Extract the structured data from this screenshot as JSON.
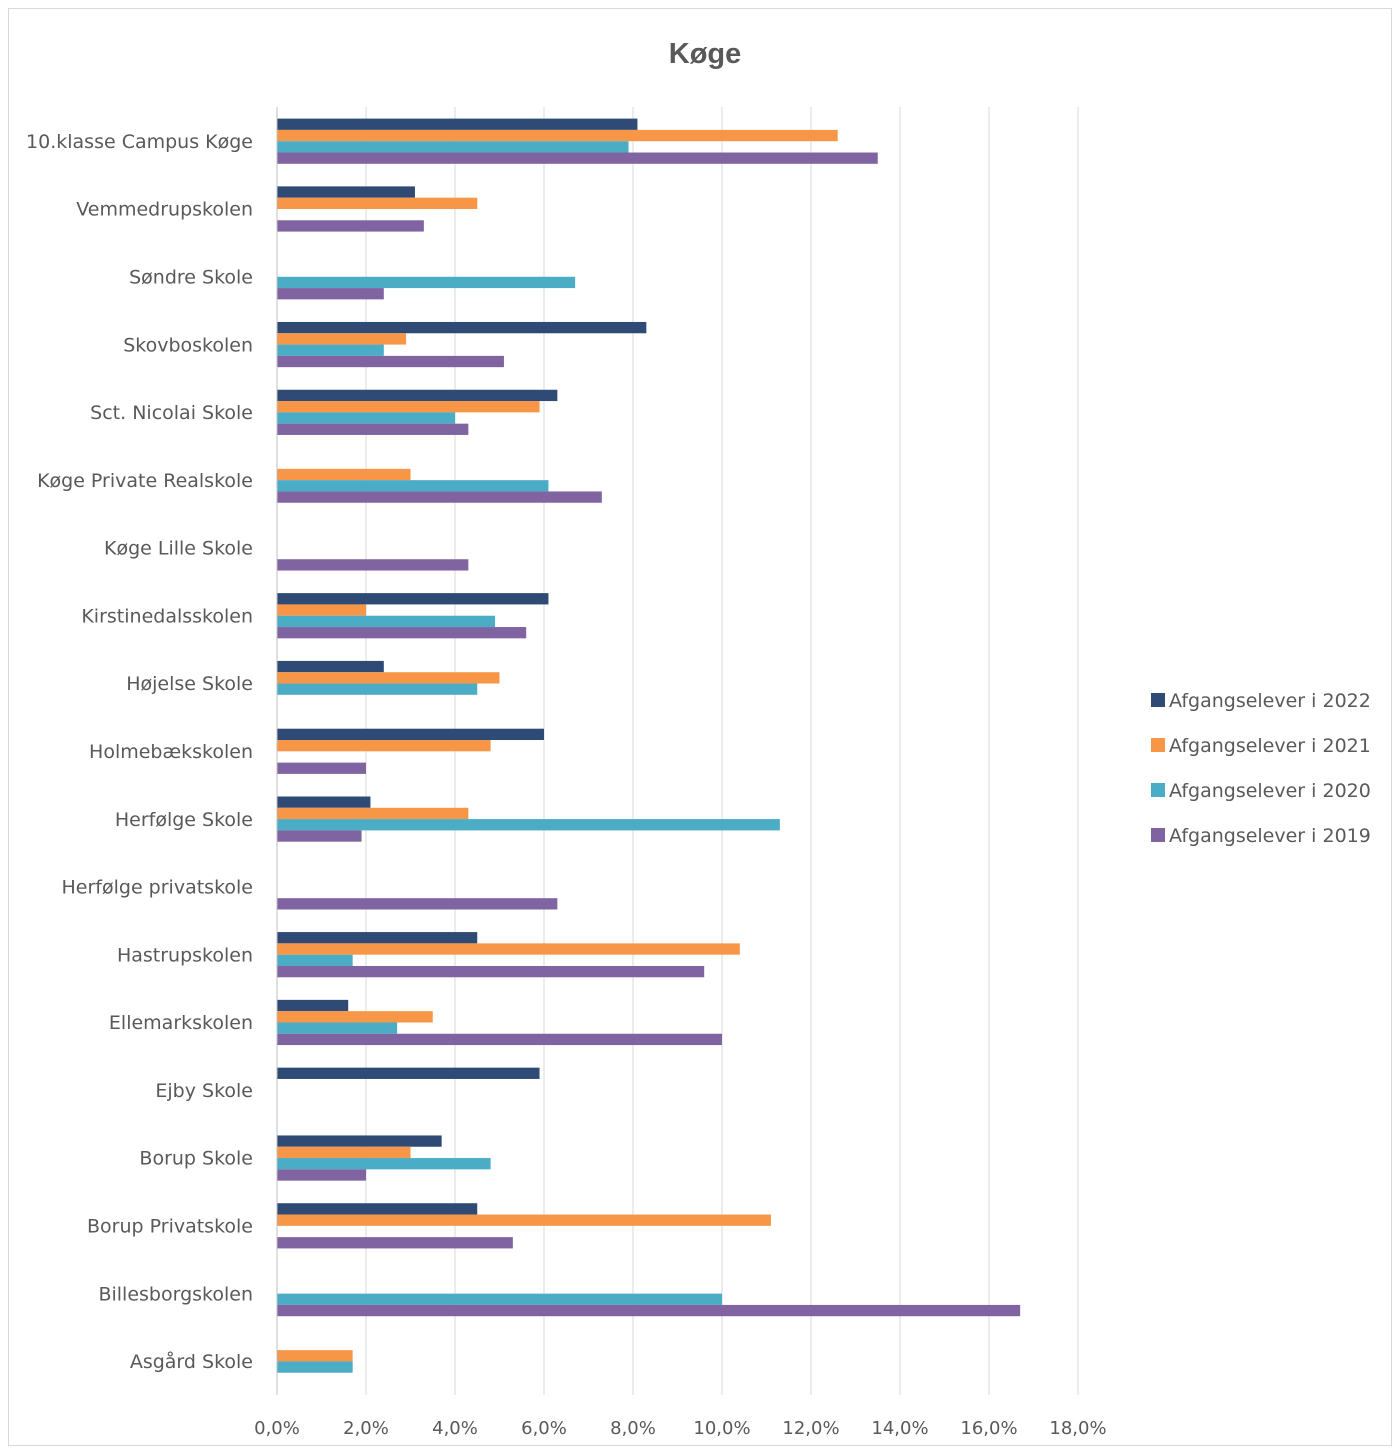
{
  "chart_data": {
    "type": "bar",
    "orientation": "horizontal",
    "title": "Køge",
    "xlabel": "",
    "ylabel": "",
    "xlim": [
      0,
      18
    ],
    "x_ticks": [
      "0,0%",
      "2,0%",
      "4,0%",
      "6,0%",
      "8,0%",
      "10,0%",
      "12,0%",
      "14,0%",
      "16,0%",
      "18,0%"
    ],
    "grid": "vertical major gridlines",
    "legend_position": "right",
    "categories": [
      "10.klasse Campus Køge",
      "Vemmedrupskolen",
      "Søndre Skole",
      "Skovboskolen",
      "Sct. Nicolai Skole",
      "Køge Private Realskole",
      "Køge Lille Skole",
      "Kirstinedalsskolen",
      "Højelse Skole",
      "Holmebækskolen",
      "Herfølge Skole",
      "Herfølge privatskole",
      "Hastrupskolen",
      "Ellemarkskolen",
      "Ejby Skole",
      "Borup Skole",
      "Borup Privatskole",
      "Billesborgskolen",
      "Asgård Skole"
    ],
    "series": [
      {
        "name": "Afgangselever i 2022",
        "color": "#2e4a75",
        "values": [
          8.1,
          3.1,
          0,
          8.3,
          6.3,
          0,
          0,
          6.1,
          2.4,
          6.0,
          2.1,
          0,
          4.5,
          1.6,
          5.9,
          3.7,
          4.5,
          0,
          0
        ]
      },
      {
        "name": "Afgangselever i 2021",
        "color": "#f79646",
        "values": [
          12.6,
          4.5,
          0,
          2.9,
          5.9,
          3.0,
          0,
          2.0,
          5.0,
          4.8,
          4.3,
          0,
          10.4,
          3.5,
          0,
          3.0,
          11.1,
          0,
          1.7
        ]
      },
      {
        "name": "Afgangselever i 2020",
        "color": "#4bacc6",
        "values": [
          7.9,
          0,
          6.7,
          2.4,
          4.0,
          6.1,
          0,
          4.9,
          4.5,
          0,
          11.3,
          0,
          1.7,
          2.7,
          0,
          4.8,
          0,
          10.0,
          1.7
        ]
      },
      {
        "name": "Afgangselever i 2019",
        "color": "#8064a2",
        "values": [
          13.5,
          3.3,
          2.4,
          5.1,
          4.3,
          7.3,
          4.3,
          5.6,
          0,
          2.0,
          1.9,
          6.3,
          9.6,
          10.0,
          0,
          2.0,
          5.3,
          16.7,
          0
        ]
      }
    ]
  }
}
